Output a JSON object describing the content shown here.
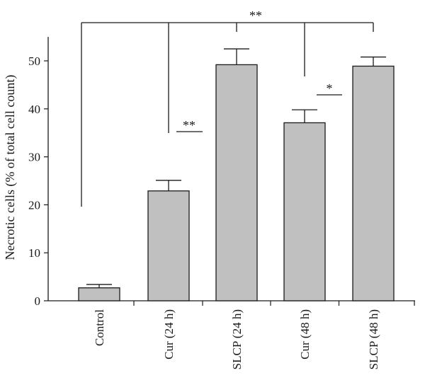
{
  "chart_data": {
    "type": "bar",
    "title": "",
    "xlabel": "",
    "ylabel": "Necrotic cells (% of total cell count)",
    "ylim": [
      0,
      55
    ],
    "yticks": [
      0,
      10,
      20,
      30,
      40,
      50
    ],
    "grid": false,
    "categories": [
      "Control",
      "Cur (24 h)",
      "SLCP (24 h)",
      "Cur (48 h)",
      "SLCP (48 h)"
    ],
    "values": [
      2.7,
      22.9,
      49.2,
      37.1,
      48.9
    ],
    "errors": [
      0.7,
      2.2,
      3.3,
      2.7,
      1.9
    ],
    "bar_color": "#c0c0c0",
    "edge_color": "#1a1a1a",
    "annotations": [
      {
        "type": "bracket",
        "from": "Control",
        "to": [
          "Cur (24 h)",
          "SLCP (24 h)",
          "Cur (48 h)",
          "SLCP (48 h)"
        ],
        "label": "**"
      },
      {
        "type": "line",
        "between": [
          "Cur (24 h)",
          "SLCP (24 h)"
        ],
        "label": "**"
      },
      {
        "type": "line",
        "between": [
          "Cur (48 h)",
          "SLCP (48 h)"
        ],
        "label": "*"
      }
    ]
  }
}
